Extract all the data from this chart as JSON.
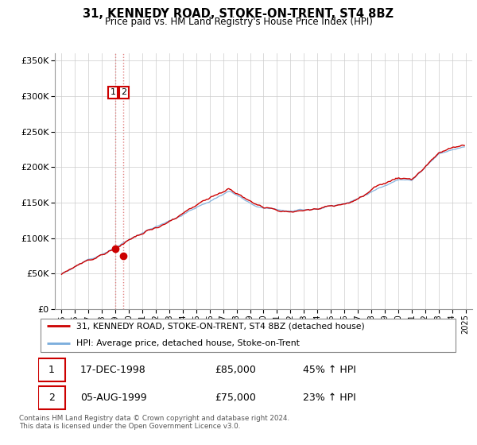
{
  "title": "31, KENNEDY ROAD, STOKE-ON-TRENT, ST4 8BZ",
  "subtitle": "Price paid vs. HM Land Registry's House Price Index (HPI)",
  "legend_line1": "31, KENNEDY ROAD, STOKE-ON-TRENT, ST4 8BZ (detached house)",
  "legend_line2": "HPI: Average price, detached house, Stoke-on-Trent",
  "footer": "Contains HM Land Registry data © Crown copyright and database right 2024.\nThis data is licensed under the Open Government Licence v3.0.",
  "sale1_label": "1",
  "sale1_date": "17-DEC-1998",
  "sale1_price": "£85,000",
  "sale1_hpi": "45% ↑ HPI",
  "sale1_x": 1998.96,
  "sale1_y": 85000,
  "sale2_label": "2",
  "sale2_date": "05-AUG-1999",
  "sale2_price": "£75,000",
  "sale2_hpi": "23% ↑ HPI",
  "sale2_x": 1999.58,
  "sale2_y": 75000,
  "hpi_color": "#7aaddc",
  "price_color": "#cc0000",
  "ylim": [
    0,
    360000
  ],
  "yticks": [
    0,
    50000,
    100000,
    150000,
    200000,
    250000,
    300000,
    350000
  ],
  "xlim_start": 1994.5,
  "xlim_end": 2025.5,
  "xtick_years": [
    1995,
    1996,
    1997,
    1998,
    1999,
    2000,
    2001,
    2002,
    2003,
    2004,
    2005,
    2006,
    2007,
    2008,
    2009,
    2010,
    2011,
    2012,
    2013,
    2014,
    2015,
    2016,
    2017,
    2018,
    2019,
    2020,
    2021,
    2022,
    2023,
    2024,
    2025
  ],
  "bg_color": "#f5f5f5"
}
